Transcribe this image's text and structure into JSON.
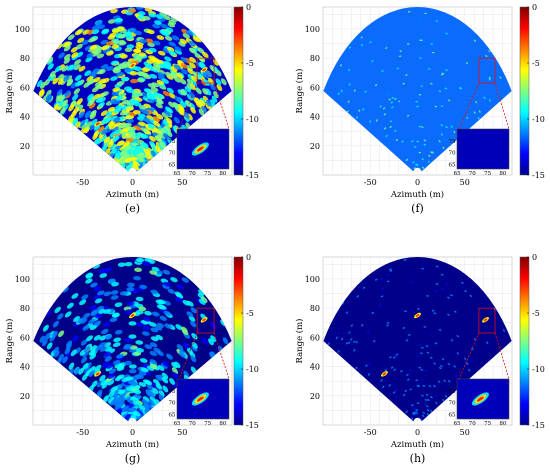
{
  "figure": {
    "panels": [
      {
        "label": "(e)",
        "style": "noisy",
        "xlabel": "Azimuth (m)",
        "ylabel": "Range (m)"
      },
      {
        "label": "(f)",
        "style": "flat",
        "xlabel": "Azimuth (m)",
        "ylabel": "Range (m)"
      },
      {
        "label": "(g)",
        "style": "medium",
        "xlabel": "Azimuth (m)",
        "ylabel": "Range (m)"
      },
      {
        "label": "(h)",
        "style": "clean",
        "xlabel": "Azimuth (m)",
        "ylabel": "Range (m)"
      }
    ],
    "colors": {
      "colormap": [
        "#00008f",
        "#0000ff",
        "#0080ff",
        "#00ffff",
        "#80ff80",
        "#ffff00",
        "#ff8000",
        "#ff0000",
        "#800000"
      ],
      "zoom_box": "#e01010"
    }
  },
  "chart_data": [
    {
      "type": "heatmap",
      "title": "",
      "panel": "(e)",
      "xlabel": "Azimuth (m)",
      "ylabel": "Range (m)",
      "xticks": [
        -50,
        0,
        50
      ],
      "yticks": [
        20,
        40,
        60,
        80,
        100
      ],
      "xlim": [
        -100,
        100
      ],
      "ylim": [
        0,
        115
      ],
      "colorbar": {
        "ticks": [
          0,
          -5,
          -10,
          -15
        ],
        "range": [
          -15,
          0
        ]
      },
      "targets": [
        {
          "x": 0,
          "y": 75
        },
        {
          "x": -35,
          "y": 35
        },
        {
          "x": 72,
          "y": 72
        }
      ],
      "inset": {
        "xticks": [
          65,
          70,
          75,
          80
        ],
        "yticks": [
          65,
          70,
          75
        ],
        "xlim": [
          65,
          82
        ],
        "ylim": [
          63,
          80
        ]
      }
    },
    {
      "type": "heatmap",
      "title": "",
      "panel": "(f)",
      "xlabel": "Azimuth (m)",
      "ylabel": "Range (m)",
      "xticks": [
        -50,
        0,
        50
      ],
      "yticks": [
        20,
        40,
        60,
        80,
        100
      ],
      "xlim": [
        -100,
        100
      ],
      "ylim": [
        0,
        115
      ],
      "colorbar": {
        "ticks": [
          0,
          -5,
          -10,
          -15
        ],
        "range": [
          -15,
          0
        ]
      },
      "targets": [],
      "inset": {
        "xticks": [
          65,
          70,
          75,
          80
        ],
        "yticks": [
          65,
          70,
          75
        ],
        "xlim": [
          65,
          82
        ],
        "ylim": [
          63,
          80
        ]
      }
    },
    {
      "type": "heatmap",
      "title": "",
      "panel": "(g)",
      "xlabel": "Azimuth (m)",
      "ylabel": "Range (m)",
      "xticks": [
        -50,
        0,
        50
      ],
      "yticks": [
        20,
        40,
        60,
        80,
        100
      ],
      "xlim": [
        -100,
        100
      ],
      "ylim": [
        0,
        115
      ],
      "colorbar": {
        "ticks": [
          0,
          -5,
          -10,
          -15
        ],
        "range": [
          -15,
          0
        ]
      },
      "targets": [
        {
          "x": 0,
          "y": 75
        },
        {
          "x": -35,
          "y": 35
        },
        {
          "x": 72,
          "y": 72
        }
      ],
      "inset": {
        "xticks": [
          65,
          70,
          75,
          80
        ],
        "yticks": [
          65,
          70,
          75
        ],
        "xlim": [
          65,
          82
        ],
        "ylim": [
          63,
          80
        ]
      }
    },
    {
      "type": "heatmap",
      "title": "",
      "panel": "(h)",
      "xlabel": "Azimuth (m)",
      "ylabel": "Range (m)",
      "xticks": [
        -50,
        0,
        50
      ],
      "yticks": [
        20,
        40,
        60,
        80,
        100
      ],
      "xlim": [
        -100,
        100
      ],
      "ylim": [
        0,
        115
      ],
      "colorbar": {
        "ticks": [
          0,
          -5,
          -10,
          -15
        ],
        "range": [
          -15,
          0
        ]
      },
      "targets": [
        {
          "x": 0,
          "y": 75
        },
        {
          "x": -35,
          "y": 35
        },
        {
          "x": 72,
          "y": 72
        }
      ],
      "inset": {
        "xticks": [
          65,
          70,
          75,
          80
        ],
        "yticks": [
          65,
          70,
          75
        ],
        "xlim": [
          65,
          82
        ],
        "ylim": [
          63,
          80
        ]
      }
    }
  ]
}
